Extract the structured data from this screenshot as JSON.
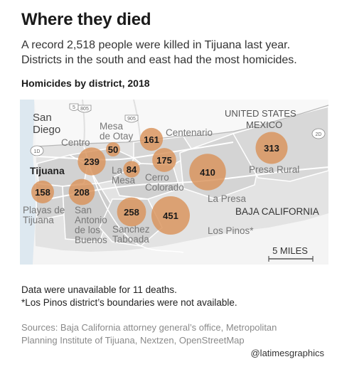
{
  "header": {
    "title": "Where they died",
    "subtitle_lines": [
      "A record 2,518 people were killed in Tijuana last year.",
      "Districts in the south and east had the most homicides."
    ],
    "chart_label": "Homicides by district, 2018"
  },
  "map": {
    "colors": {
      "ocean": "#dde8f0",
      "us_land": "#f7f7f7",
      "tijuana_land": "#e2e2e2",
      "outside_land": "#f2f2f2",
      "district_fill": "#cccccc",
      "road": "#ffffff",
      "bubble": "#d9925a",
      "label": "#777777"
    },
    "place_labels": {
      "san_diego": [
        "San",
        "Diego"
      ],
      "united_states": "UNITED STATES",
      "mexico": "MEXICO",
      "tijuana": "Tijuana",
      "baja_california": "BAJA CALIFORNIA"
    },
    "route_shields": {
      "i5": "5",
      "i805": "805",
      "i905": "905",
      "ca1d": "1D",
      "ca2d": "2D"
    },
    "scale_label": "5 MILES",
    "districts": [
      {
        "id": "centro",
        "name_lines": [
          "Centro"
        ],
        "homicides": null
      },
      {
        "id": "mesa-de-otay",
        "name_lines": [
          "Mesa",
          "de Otay"
        ],
        "homicides": 50
      },
      {
        "id": "centenario",
        "name_lines": [
          "Centenario"
        ],
        "homicides": 161
      },
      {
        "id": "presa-rural",
        "name_lines": [
          "Presa Rural"
        ],
        "homicides": 313
      },
      {
        "id": "unnamed-west",
        "name_lines": [],
        "homicides": 239
      },
      {
        "id": "la-mesa",
        "name_lines": [
          "La",
          "Mesa"
        ],
        "homicides": 84
      },
      {
        "id": "cerro-colorado",
        "name_lines": [
          "Cerro",
          "Colorado"
        ],
        "homicides": 175
      },
      {
        "id": "la-presa",
        "name_lines": [
          "La Presa"
        ],
        "homicides": 410
      },
      {
        "id": "playas-de-tijuana",
        "name_lines": [
          "Playas de",
          "Tijuana"
        ],
        "homicides": 158
      },
      {
        "id": "san-antonio-de-los-buenos",
        "name_lines": [
          "San",
          "Antonio",
          "de los",
          "Buenos"
        ],
        "homicides": 208
      },
      {
        "id": "sanchez-taboada",
        "name_lines": [
          "Sanchez",
          "Taboada"
        ],
        "homicides": 258
      },
      {
        "id": "los-pinos",
        "name_lines": [
          "Los Pinos*"
        ],
        "homicides": 451
      }
    ]
  },
  "notes": [
    "Data were unavailable for 11 deaths.",
    "*Los Pinos district’s boundaries were not available."
  ],
  "sources": [
    "Sources: Baja California attorney general’s office, Metropolitan",
    "Planning Institute of Tijuana, Nextzen, OpenStreetMap"
  ],
  "credit": "@latimesgraphics"
}
